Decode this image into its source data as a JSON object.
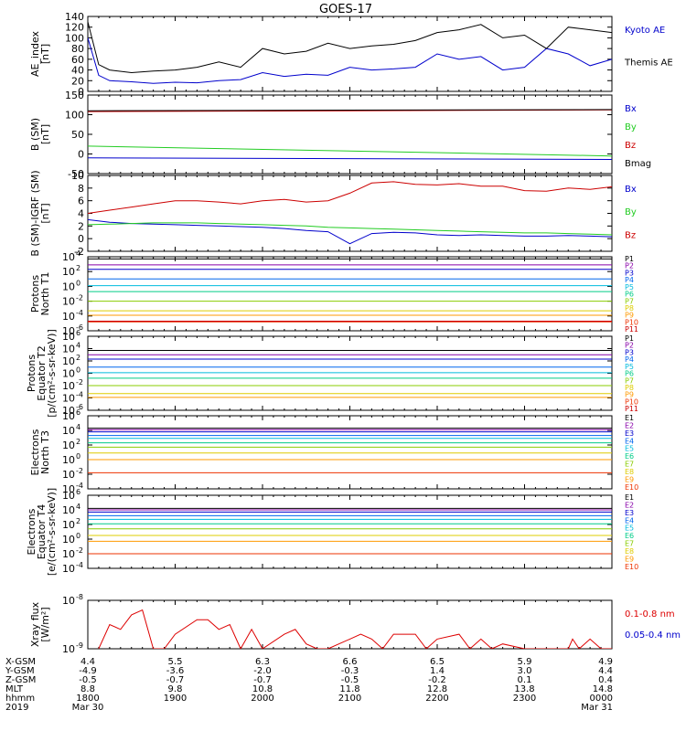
{
  "title": "GOES-17",
  "colors": {
    "kyoto": "#0000cc",
    "themis": "#000000",
    "bx": "#0000cc",
    "by": "#22cc22",
    "bz": "#cc0000",
    "bmag": "#000000",
    "xray_long": "#dd0000",
    "xray_short": "#0000cc",
    "channels": [
      "#000000",
      "#8800aa",
      "#0000cc",
      "#0066ee",
      "#00bbdd",
      "#00cc88",
      "#88cc00",
      "#ddcc00",
      "#ff9900",
      "#ee3300",
      "#cc0000"
    ]
  },
  "chart_data": [
    {
      "type": "line",
      "ylabel": "AE_index\n[nT]",
      "ylim": [
        0,
        140
      ],
      "yticks": [
        "0",
        "20",
        "40",
        "60",
        "80",
        "100",
        "120",
        "140"
      ],
      "series": [
        {
          "name": "Kyoto AE",
          "x": [
            0,
            0.5,
            1,
            2,
            3,
            4,
            5,
            6,
            7,
            8,
            9,
            10,
            11,
            12,
            13,
            14,
            15,
            16,
            17,
            18,
            19,
            20,
            21,
            22,
            23,
            24
          ],
          "values": [
            100,
            30,
            20,
            18,
            15,
            17,
            16,
            20,
            22,
            35,
            28,
            32,
            30,
            45,
            40,
            42,
            45,
            70,
            60,
            65,
            40,
            45,
            80,
            70,
            48,
            60
          ]
        },
        {
          "name": "Themis AE",
          "x": [
            0,
            0.5,
            1,
            2,
            3,
            4,
            5,
            6,
            7,
            8,
            9,
            10,
            11,
            12,
            13,
            14,
            15,
            16,
            17,
            18,
            19,
            20,
            21,
            22,
            23,
            24
          ],
          "values": [
            130,
            50,
            40,
            35,
            38,
            40,
            45,
            55,
            45,
            80,
            70,
            75,
            90,
            80,
            85,
            88,
            95,
            110,
            115,
            125,
            100,
            105,
            80,
            120,
            115,
            110
          ]
        }
      ]
    },
    {
      "type": "line",
      "ylabel": "B (SM)\n[nT]",
      "ylim": [
        -50,
        150
      ],
      "yticks": [
        "-50",
        "0",
        "50",
        "100",
        "150"
      ],
      "series": [
        {
          "name": "Bx",
          "x": [
            0,
            24
          ],
          "values": [
            -10,
            -14
          ]
        },
        {
          "name": "By",
          "x": [
            0,
            24
          ],
          "values": [
            20,
            -5
          ]
        },
        {
          "name": "Bz",
          "x": [
            0,
            24
          ],
          "values": [
            108,
            112
          ]
        },
        {
          "name": "Bmag",
          "x": [
            0,
            24
          ],
          "values": [
            110,
            113
          ]
        }
      ]
    },
    {
      "type": "line",
      "ylabel": "B (SM)-IGRF (SM)\n[nT]",
      "ylim": [
        -2,
        10
      ],
      "yticks": [
        "-2",
        "0",
        "2",
        "4",
        "6",
        "8",
        "10"
      ],
      "series": [
        {
          "name": "Bx",
          "x": [
            0,
            1,
            2,
            3,
            4,
            5,
            6,
            7,
            8,
            9,
            10,
            11,
            12,
            13,
            14,
            15,
            16,
            17,
            18,
            19,
            20,
            21,
            22,
            23,
            24
          ],
          "values": [
            3,
            2.6,
            2.4,
            2.3,
            2.2,
            2.1,
            2,
            1.9,
            1.8,
            1.6,
            1.3,
            1.1,
            -0.8,
            0.8,
            1,
            0.9,
            0.6,
            0.5,
            0.6,
            0.5,
            0.4,
            0.4,
            0.5,
            0.4,
            0.3
          ]
        },
        {
          "name": "By",
          "x": [
            0,
            1,
            2,
            3,
            4,
            5,
            6,
            7,
            8,
            9,
            10,
            11,
            12,
            13,
            14,
            15,
            16,
            17,
            18,
            19,
            20,
            21,
            22,
            23,
            24
          ],
          "values": [
            2.2,
            2.3,
            2.4,
            2.5,
            2.5,
            2.5,
            2.4,
            2.3,
            2.2,
            2.1,
            2,
            1.8,
            1.7,
            1.6,
            1.5,
            1.4,
            1.3,
            1.2,
            1.1,
            1,
            0.9,
            0.9,
            0.8,
            0.7,
            0.6
          ]
        },
        {
          "name": "Bz",
          "x": [
            0,
            1,
            2,
            3,
            4,
            5,
            6,
            7,
            8,
            9,
            10,
            11,
            12,
            13,
            14,
            15,
            16,
            17,
            18,
            19,
            20,
            21,
            22,
            23,
            24
          ],
          "values": [
            4,
            4.5,
            5,
            5.5,
            6,
            6,
            5.8,
            5.5,
            6,
            6.2,
            5.8,
            6,
            7.2,
            8.8,
            9,
            8.6,
            8.5,
            8.7,
            8.3,
            8.3,
            7.6,
            7.5,
            8,
            7.8,
            8.2
          ]
        }
      ]
    },
    {
      "type": "line",
      "ylabel": "Protons\nNorth T1",
      "ylog": true,
      "ylim": [
        -6,
        4
      ],
      "yticks": [
        "10^-6",
        "10^-4",
        "10^-2",
        "10^0",
        "10^2",
        "10^4"
      ],
      "series": [
        {
          "name": "P1",
          "log10": 3.7
        },
        {
          "name": "P2",
          "log10": 2.9
        },
        {
          "name": "P3",
          "log10": 2.3
        },
        {
          "name": "P4",
          "log10": 1.0
        },
        {
          "name": "P5",
          "log10": 0.1
        },
        {
          "name": "P6",
          "log10": -0.7
        },
        {
          "name": "P7",
          "log10": -2.0
        },
        {
          "name": "P8",
          "log10": -3.3
        },
        {
          "name": "P9",
          "log10": -3.9
        },
        {
          "name": "P10",
          "log10": -4.8
        },
        {
          "name": "P11",
          "log10": -4.7
        }
      ]
    },
    {
      "type": "line",
      "ylabel": "Protons\nEquator T2\n[p/(cm²-s-sr-keV)]",
      "ylog": true,
      "ylim": [
        -6,
        6
      ],
      "yticks": [
        "10^-6",
        "10^-4",
        "10^-2",
        "10^0",
        "10^2",
        "10^4",
        "10^6"
      ],
      "series": [
        {
          "name": "P1",
          "log10": 3.7
        },
        {
          "name": "P2",
          "log10": 3.0
        },
        {
          "name": "P3",
          "log10": 2.3
        },
        {
          "name": "P4",
          "log10": 1.0
        },
        {
          "name": "P5",
          "log10": 0.1
        },
        {
          "name": "P6",
          "log10": -0.8
        },
        {
          "name": "P7",
          "log10": -2.0
        },
        {
          "name": "P8",
          "log10": -3.3
        },
        {
          "name": "P9",
          "log10": -3.9
        },
        {
          "name": "P10",
          "log10": -9
        },
        {
          "name": "P11",
          "log10": -9
        }
      ]
    },
    {
      "type": "line",
      "ylabel": "Electrons\nNorth T3",
      "ylog": true,
      "ylim": [
        -4,
        6
      ],
      "yticks": [
        "10^-4",
        "10^-2",
        "10^0",
        "10^2",
        "10^4",
        "10^6"
      ],
      "series": [
        {
          "name": "E1",
          "log10": 4.3
        },
        {
          "name": "E2",
          "log10": 4.1
        },
        {
          "name": "E3",
          "log10": 3.8
        },
        {
          "name": "E4",
          "log10": 3.3
        },
        {
          "name": "E5",
          "log10": 2.9
        },
        {
          "name": "E6",
          "log10": 2.3
        },
        {
          "name": "E7",
          "log10": 1.7
        },
        {
          "name": "E8",
          "log10": 0.9
        },
        {
          "name": "E9",
          "log10": 0.0
        },
        {
          "name": "E10",
          "log10": -1.8
        }
      ]
    },
    {
      "type": "line",
      "ylabel": "Electrons\nEquator T4\n[e/(cm²-s-sr-keV)]",
      "ylog": true,
      "ylim": [
        -4,
        6
      ],
      "yticks": [
        "10^-4",
        "10^-2",
        "10^0",
        "10^2",
        "10^4",
        "10^6"
      ],
      "series": [
        {
          "name": "E1",
          "log10": 4.2
        },
        {
          "name": "E2",
          "log10": 4.0
        },
        {
          "name": "E3",
          "log10": 3.7
        },
        {
          "name": "E4",
          "log10": 3.2
        },
        {
          "name": "E5",
          "log10": 2.7
        },
        {
          "name": "E6",
          "log10": 2.1
        },
        {
          "name": "E7",
          "log10": 1.4
        },
        {
          "name": "E8",
          "log10": 0.5
        },
        {
          "name": "E9",
          "log10": -0.3
        },
        {
          "name": "E10",
          "log10": -2.0
        }
      ]
    },
    {
      "type": "line",
      "ylabel": "Xray flux\n[W/m²]",
      "ylog": true,
      "ylim": [
        -9,
        -8
      ],
      "yticks": [
        "10^-9",
        "10^-8"
      ],
      "series": [
        {
          "name": "0.1-0.8 nm",
          "x": [
            0.5,
            1,
            1.5,
            2,
            2.5,
            3,
            3.5,
            4,
            5,
            5.5,
            6,
            6.5,
            7,
            7.5,
            8,
            9,
            9.5,
            10,
            10.5,
            11,
            12,
            12.5,
            13,
            13.5,
            14,
            15,
            15.5,
            16,
            17,
            17.5,
            18,
            18.5,
            19,
            20,
            21,
            22,
            22.2,
            22.5,
            23,
            23.5,
            24
          ],
          "values": [
            -9,
            -8.5,
            -8.6,
            -8.3,
            -8.2,
            -9,
            -9,
            -8.7,
            -8.4,
            -8.4,
            -8.6,
            -8.5,
            -9,
            -8.6,
            -9,
            -8.7,
            -8.6,
            -8.9,
            -9,
            -9,
            -8.8,
            -8.7,
            -8.8,
            -9,
            -8.7,
            -8.7,
            -9,
            -8.8,
            -8.7,
            -9,
            -8.8,
            -9,
            -8.9,
            -9,
            -9,
            -9,
            -8.8,
            -9,
            -8.8,
            -9,
            -9
          ]
        },
        {
          "name": "0.05-0.4 nm",
          "x": [
            0,
            24
          ],
          "values": [
            -10,
            -10
          ]
        }
      ]
    }
  ],
  "sidebar_labels": {
    "panel0": [
      "Kyoto AE",
      "Themis AE"
    ],
    "panel1": [
      "Bx",
      "By",
      "Bz",
      "Bmag"
    ],
    "panel2": [
      "Bx",
      "By",
      "Bz"
    ],
    "panel3": [
      "P1",
      "P2",
      "P3",
      "P4",
      "P5",
      "P6",
      "P7",
      "P8",
      "P9",
      "P10",
      "P11"
    ],
    "panel4": [
      "P1",
      "P2",
      "P3",
      "P4",
      "P5",
      "P6",
      "P7",
      "P8",
      "P9",
      "P10",
      "P11"
    ],
    "panel5": [
      "E1",
      "E2",
      "E3",
      "E4",
      "E5",
      "E6",
      "E7",
      "E8",
      "E9",
      "E10"
    ],
    "panel6": [
      "E1",
      "E2",
      "E3",
      "E4",
      "E5",
      "E6",
      "E7",
      "E8",
      "E9",
      "E10"
    ],
    "panel7": [
      "0.1-0.8 nm",
      "0.05-0.4 nm"
    ]
  },
  "bottom_axis": {
    "row_labels": [
      "X-GSM",
      "Y-GSM",
      "Z-GSM",
      "MLT",
      "hhmm",
      "2019"
    ],
    "columns": [
      [
        "4.4",
        "-4.9",
        "-0.5",
        "8.8",
        "1800",
        "Mar 30"
      ],
      [
        "5.5",
        "-3.6",
        "-0.7",
        "9.8",
        "1900",
        ""
      ],
      [
        "6.3",
        "-2.0",
        "-0.7",
        "10.8",
        "2000",
        ""
      ],
      [
        "6.6",
        "-0.3",
        "-0.5",
        "11.8",
        "2100",
        ""
      ],
      [
        "6.5",
        "1.4",
        "-0.2",
        "12.8",
        "2200",
        ""
      ],
      [
        "5.9",
        "3.0",
        "0.1",
        "13.8",
        "2300",
        ""
      ],
      [
        "4.9",
        "4.4",
        "0.4",
        "14.8",
        "0000",
        "Mar 31"
      ]
    ]
  }
}
